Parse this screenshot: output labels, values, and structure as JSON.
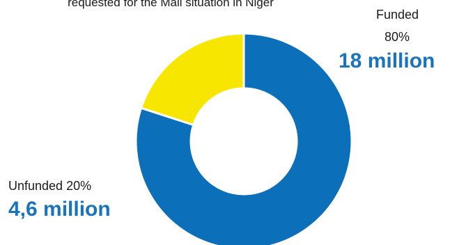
{
  "chart_data": {
    "type": "pie",
    "title": "requested for the Mali situation in Niger",
    "slices": [
      {
        "label": "Funded",
        "percent_text": "80%",
        "amount_text": "18 million",
        "value": 80,
        "color": "#0b6fba"
      },
      {
        "label": "Unfunded",
        "percent_text": "20%",
        "amount_text": "4,6 million",
        "value": 20,
        "color": "#f7e600"
      }
    ],
    "labels": {
      "funded": "Funded",
      "funded_percent": "80%",
      "funded_amount": "18 million",
      "unfunded": "Unfunded 20%",
      "unfunded_amount": "4,6 million"
    }
  }
}
